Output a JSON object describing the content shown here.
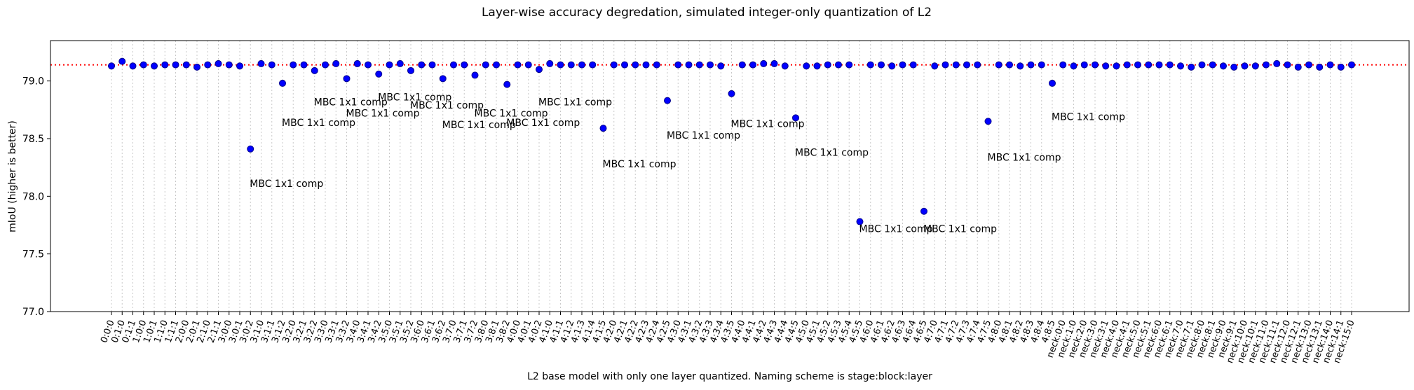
{
  "chart_data": {
    "type": "scatter",
    "title": "Layer-wise accuracy degredation, simulated integer-only quantization of L2",
    "xlabel": "L2 base model with only one layer quantized. Naming scheme is stage:block:layer",
    "ylabel": "mIoU (higher is better)",
    "ylim": [
      77.0,
      79.35
    ],
    "yticks": [
      77.0,
      77.5,
      78.0,
      78.5,
      79.0
    ],
    "ytick_labels": [
      "77.0",
      "77.5",
      "78.0",
      "78.5",
      "79.0"
    ],
    "reference_line": {
      "y": 79.14,
      "style": "dotted",
      "color": "#ff0000"
    },
    "grid": "vertical dotted lines at each category",
    "marker_color": "#0000ff",
    "categories": [
      "0:0:0",
      "0:1:0",
      "0:1:1",
      "1:0:0",
      "1:0:1",
      "1:1:0",
      "1:1:1",
      "2:0:0",
      "2:0:1",
      "2:1:0",
      "2:1:1",
      "3:0:0",
      "3:0:1",
      "3:0:2",
      "3:1:0",
      "3:1:1",
      "3:1:2",
      "3:2:0",
      "3:2:1",
      "3:2:2",
      "3:3:0",
      "3:3:1",
      "3:3:2",
      "3:4:0",
      "3:4:1",
      "3:4:2",
      "3:5:0",
      "3:5:1",
      "3:5:2",
      "3:6:0",
      "3:6:1",
      "3:6:2",
      "3:7:0",
      "3:7:1",
      "3:7:2",
      "3:8:0",
      "3:8:1",
      "3:8:2",
      "4:0:0",
      "4:0:1",
      "4:0:2",
      "4:1:0",
      "4:1:1",
      "4:1:2",
      "4:1:3",
      "4:1:4",
      "4:1:5",
      "4:2:0",
      "4:2:1",
      "4:2:2",
      "4:2:3",
      "4:2:4",
      "4:2:5",
      "4:3:0",
      "4:3:1",
      "4:3:2",
      "4:3:3",
      "4:3:4",
      "4:3:5",
      "4:4:0",
      "4:4:1",
      "4:4:2",
      "4:4:3",
      "4:4:4",
      "4:4:5",
      "4:5:0",
      "4:5:1",
      "4:5:2",
      "4:5:3",
      "4:5:4",
      "4:5:5",
      "4:6:0",
      "4:6:1",
      "4:6:2",
      "4:6:3",
      "4:6:4",
      "4:6:5",
      "4:7:0",
      "4:7:1",
      "4:7:2",
      "4:7:3",
      "4:7:4",
      "4:7:5",
      "4:8:0",
      "4:8:1",
      "4:8:2",
      "4:8:3",
      "4:8:4",
      "4:8:5",
      "neck:0:0",
      "neck:1:0",
      "neck:2:0",
      "neck:3:0",
      "neck:3:1",
      "neck:4:0",
      "neck:4:1",
      "neck:5:0",
      "neck:5:1",
      "neck:6:0",
      "neck:6:1",
      "neck:7:0",
      "neck:7:1",
      "neck:8:0",
      "neck:8:1",
      "neck:9:0",
      "neck:9:1",
      "neck:10:0",
      "neck:10:1",
      "neck:11:0",
      "neck:11:1",
      "neck:12:0",
      "neck:12:1",
      "neck:13:0",
      "neck:13:1",
      "neck:14:0",
      "neck:14:1",
      "neck:15:0"
    ],
    "values": [
      79.13,
      79.17,
      79.13,
      79.14,
      79.13,
      79.14,
      79.14,
      79.14,
      79.12,
      79.14,
      79.15,
      79.14,
      79.13,
      78.41,
      79.15,
      79.14,
      78.98,
      79.14,
      79.14,
      79.09,
      79.14,
      79.15,
      79.02,
      79.15,
      79.14,
      79.06,
      79.14,
      79.15,
      79.09,
      79.14,
      79.14,
      79.02,
      79.14,
      79.14,
      79.05,
      79.14,
      79.14,
      78.97,
      79.14,
      79.14,
      79.1,
      79.15,
      79.14,
      79.14,
      79.14,
      79.14,
      78.59,
      79.14,
      79.14,
      79.14,
      79.14,
      79.14,
      78.83,
      79.14,
      79.14,
      79.14,
      79.14,
      79.13,
      78.89,
      79.14,
      79.14,
      79.15,
      79.15,
      79.13,
      78.68,
      79.13,
      79.13,
      79.14,
      79.14,
      79.14,
      77.78,
      79.14,
      79.14,
      79.13,
      79.14,
      79.14,
      77.87,
      79.13,
      79.14,
      79.14,
      79.14,
      79.14,
      78.65,
      79.14,
      79.14,
      79.13,
      79.14,
      79.14,
      78.98,
      79.14,
      79.13,
      79.14,
      79.14,
      79.13,
      79.13,
      79.14,
      79.14,
      79.14,
      79.14,
      79.14,
      79.13,
      79.12,
      79.14,
      79.14,
      79.13,
      79.12,
      79.13,
      79.13,
      79.14,
      79.15,
      79.14,
      79.12,
      79.14,
      79.12,
      79.14,
      79.12,
      79.14
    ],
    "annotations": [
      {
        "x": "3:0:2",
        "text": "MBC 1x1 comp",
        "y": 78.11
      },
      {
        "x": "3:1:2",
        "text": "MBC 1x1 comp",
        "y": 78.64
      },
      {
        "x": "3:2:2",
        "text": "MBC 1x1 comp",
        "y": 78.82
      },
      {
        "x": "3:3:2",
        "text": "MBC 1x1 comp",
        "y": 78.72
      },
      {
        "x": "3:4:2",
        "text": "MBC 1x1 comp",
        "y": 78.86
      },
      {
        "x": "3:5:2",
        "text": "MBC 1x1 comp",
        "y": 78.79
      },
      {
        "x": "3:6:2",
        "text": "MBC 1x1 comp",
        "y": 78.62
      },
      {
        "x": "3:7:2",
        "text": "MBC 1x1 comp",
        "y": 78.72
      },
      {
        "x": "3:8:2",
        "text": "MBC 1x1 comp",
        "y": 78.64
      },
      {
        "x": "4:0:2",
        "text": "MBC 1x1 comp",
        "y": 78.82
      },
      {
        "x": "4:1:5",
        "text": "MBC 1x1 comp",
        "y": 78.28
      },
      {
        "x": "4:2:5",
        "text": "MBC 1x1 comp",
        "y": 78.53
      },
      {
        "x": "4:3:5",
        "text": "MBC 1x1 comp",
        "y": 78.63
      },
      {
        "x": "4:4:5",
        "text": "MBC 1x1 comp",
        "y": 78.38
      },
      {
        "x": "4:5:5",
        "text": "MBC 1x1 comp",
        "y": 77.72
      },
      {
        "x": "4:6:5",
        "text": "MBC 1x1 comp",
        "y": 77.72
      },
      {
        "x": "4:7:5",
        "text": "MBC 1x1 comp",
        "y": 78.34
      },
      {
        "x": "4:8:5",
        "text": "MBC 1x1 comp",
        "y": 78.69
      }
    ]
  }
}
